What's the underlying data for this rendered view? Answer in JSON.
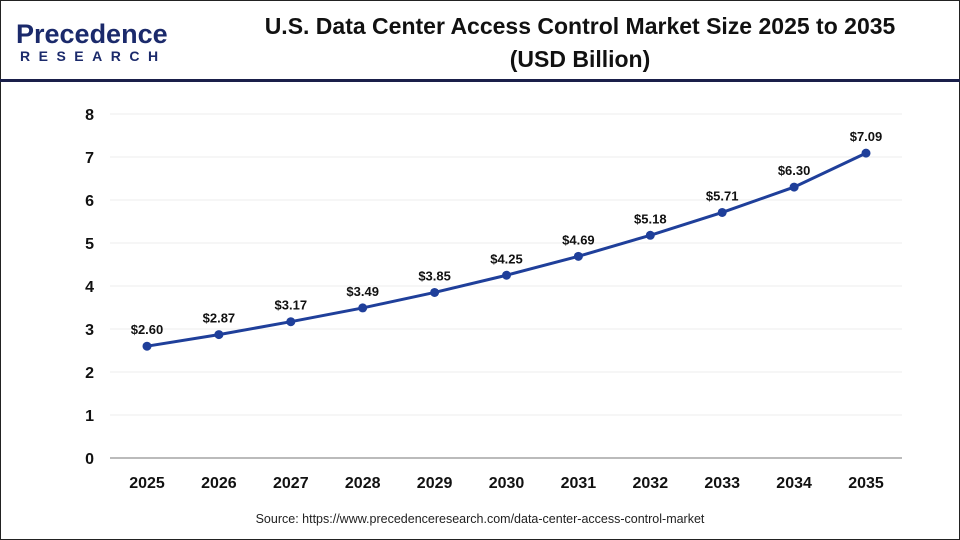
{
  "logo": {
    "line1": "Precedence",
    "line2": "RESEARCH"
  },
  "title_line1": "U.S. Data Center Access Control Market Size 2025 to 2035",
  "title_line2": "(USD Billion)",
  "source": "Source: https://www.precedenceresearch.com/data-center-access-control-market",
  "chart_data": {
    "type": "line",
    "title": "U.S. Data Center Access Control Market Size 2025 to 2035 (USD Billion)",
    "categories": [
      "2025",
      "2026",
      "2027",
      "2028",
      "2029",
      "2030",
      "2031",
      "2032",
      "2033",
      "2034",
      "2035"
    ],
    "values": [
      2.6,
      2.87,
      3.17,
      3.49,
      3.85,
      4.25,
      4.69,
      5.18,
      5.71,
      6.3,
      7.09
    ],
    "data_labels": [
      "$2.60",
      "$2.87",
      "$3.17",
      "$3.49",
      "$3.85",
      "$4.25",
      "$4.69",
      "$5.18",
      "$5.71",
      "$6.30",
      "$7.09"
    ],
    "ylim": [
      0,
      8
    ],
    "yticks": [
      "0",
      "1",
      "2",
      "3",
      "4",
      "5",
      "6",
      "7",
      "8"
    ],
    "grid": true,
    "line_color": "#1f3f9a"
  }
}
